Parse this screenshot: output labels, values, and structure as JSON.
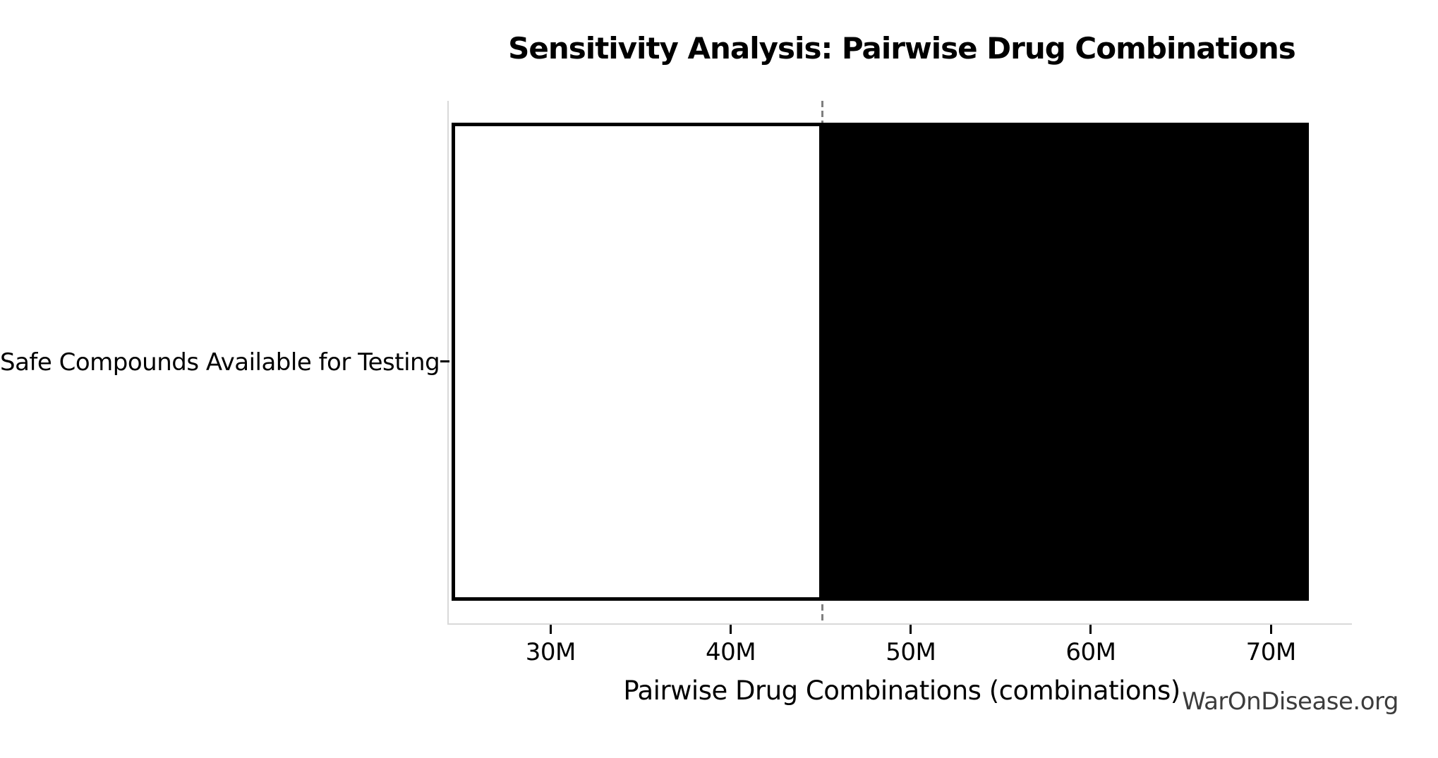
{
  "chart_data": {
    "type": "bar",
    "orientation": "horizontal",
    "title": "Sensitivity Analysis: Pairwise Drug Combinations",
    "xlabel": "Pairwise Drug Combinations (combinations)",
    "ylabel": "",
    "categories": [
      "Safe Compounds Available for Testing"
    ],
    "units": "millions of combinations",
    "bars": [
      {
        "category": "Safe Compounds Available for Testing",
        "low_m": 24.5,
        "baseline_m": 45.1,
        "high_m": 72.1,
        "low_segment_color": "#ffffff",
        "high_segment_color": "#000000",
        "edge_color": "#000000"
      }
    ],
    "baseline_m": 45.1,
    "baseline_style": "dashed gray vertical line",
    "xlim_m": [
      24.5,
      74.5
    ],
    "x_ticks": [
      {
        "value_m": 30,
        "label": "30M"
      },
      {
        "value_m": 40,
        "label": "40M"
      },
      {
        "value_m": 50,
        "label": "50M"
      },
      {
        "value_m": 60,
        "label": "60M"
      },
      {
        "value_m": 70,
        "label": "70M"
      }
    ],
    "grid": false,
    "legend": null,
    "watermark": "WarOnDisease.org",
    "colors": {
      "spine": "#d9d9d9",
      "baseline_line": "#7f7f7f",
      "tick": "#000000",
      "text": "#000000",
      "watermark_text": "#3c3c3c"
    }
  }
}
